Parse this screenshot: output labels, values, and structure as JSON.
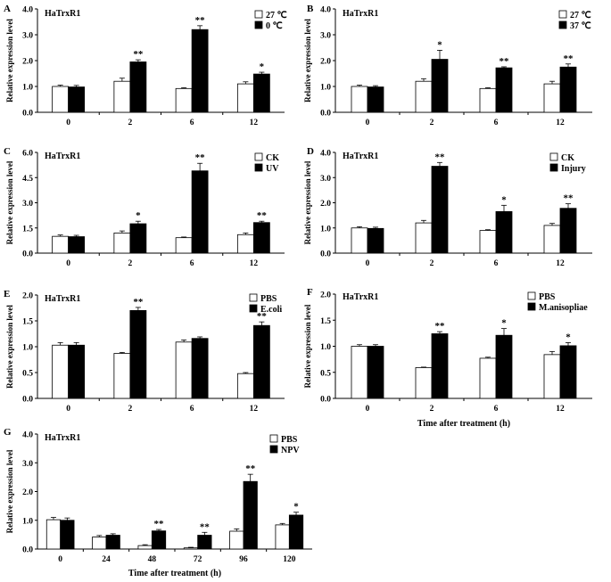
{
  "figure": {
    "colors": {
      "control": "#ffffff",
      "treatment": "#000000",
      "stroke": "#000000"
    }
  },
  "chart_data": [
    {
      "type": "bar",
      "panel": "A",
      "title": "HaTrxR1",
      "xlabel": "",
      "ylabel": "Relative expression level",
      "categories": [
        "0",
        "2",
        "6",
        "12"
      ],
      "ylim": [
        0,
        4.0
      ],
      "yticks": [
        "0.0",
        "1.0",
        "2.0",
        "3.0",
        "4.0"
      ],
      "legend_position": "top-right",
      "series": [
        {
          "name": "27 ℃",
          "values": [
            1.0,
            1.2,
            0.92,
            1.1
          ],
          "errors": [
            0.05,
            0.12,
            0.03,
            0.08
          ]
        },
        {
          "name": "0 ℃",
          "values": [
            0.98,
            1.95,
            3.2,
            1.48
          ],
          "errors": [
            0.06,
            0.08,
            0.15,
            0.07
          ]
        }
      ],
      "significance": [
        "",
        "**",
        "**",
        "*"
      ]
    },
    {
      "type": "bar",
      "panel": "B",
      "title": "HaTrxR1",
      "xlabel": "",
      "ylabel": "Relative expression level",
      "categories": [
        "0",
        "2",
        "6",
        "12"
      ],
      "ylim": [
        0,
        4.0
      ],
      "yticks": [
        "0.0",
        "1.0",
        "2.0",
        "3.0",
        "4.0"
      ],
      "legend_position": "top-right",
      "series": [
        {
          "name": "27 ℃",
          "values": [
            1.0,
            1.2,
            0.92,
            1.1
          ],
          "errors": [
            0.05,
            0.1,
            0.03,
            0.1
          ]
        },
        {
          "name": "37 ℃",
          "values": [
            0.98,
            2.05,
            1.72,
            1.75
          ],
          "errors": [
            0.05,
            0.35,
            0.04,
            0.12
          ]
        }
      ],
      "significance": [
        "",
        "*",
        "**",
        "**"
      ]
    },
    {
      "type": "bar",
      "panel": "C",
      "title": "HaTrxR1",
      "xlabel": "",
      "ylabel": "Relative expression level",
      "categories": [
        "0",
        "2",
        "6",
        "12"
      ],
      "ylim": [
        0,
        6.0
      ],
      "yticks": [
        "0.0",
        "1.5",
        "3.0",
        "4.5",
        "6.0"
      ],
      "legend_position": "top-right",
      "series": [
        {
          "name": "CK",
          "values": [
            1.0,
            1.2,
            0.92,
            1.1
          ],
          "errors": [
            0.08,
            0.12,
            0.04,
            0.1
          ]
        },
        {
          "name": "UV",
          "values": [
            0.98,
            1.75,
            4.9,
            1.82
          ],
          "errors": [
            0.08,
            0.15,
            0.45,
            0.08
          ]
        }
      ],
      "significance": [
        "",
        "*",
        "**",
        "**"
      ]
    },
    {
      "type": "bar",
      "panel": "D",
      "title": "HaTrxR1",
      "xlabel": "",
      "ylabel": "Relative expression level",
      "categories": [
        "0",
        "2",
        "6",
        "12"
      ],
      "ylim": [
        0,
        4.0
      ],
      "yticks": [
        "0.0",
        "1.0",
        "2.0",
        "3.0",
        "4.0"
      ],
      "legend_position": "top-right",
      "series": [
        {
          "name": "CK",
          "values": [
            1.0,
            1.2,
            0.9,
            1.1
          ],
          "errors": [
            0.05,
            0.1,
            0.03,
            0.08
          ]
        },
        {
          "name": "Injury",
          "values": [
            0.98,
            3.45,
            1.65,
            1.78
          ],
          "errors": [
            0.05,
            0.15,
            0.25,
            0.18
          ]
        }
      ],
      "significance": [
        "",
        "**",
        "*",
        "**"
      ]
    },
    {
      "type": "bar",
      "panel": "E",
      "title": "HaTrxR1",
      "xlabel": "",
      "ylabel": "Relative expression level",
      "categories": [
        "0",
        "2",
        "6",
        "12"
      ],
      "ylim": [
        0,
        2.0
      ],
      "yticks": [
        "0.0",
        "0.5",
        "1.0",
        "1.5",
        "2.0"
      ],
      "legend_position": "top-right",
      "series": [
        {
          "name": "PBS",
          "values": [
            1.03,
            0.87,
            1.09,
            0.48
          ],
          "errors": [
            0.05,
            0.02,
            0.04,
            0.02
          ]
        },
        {
          "name": "E.coli",
          "values": [
            1.03,
            1.7,
            1.16,
            1.41
          ],
          "errors": [
            0.05,
            0.06,
            0.03,
            0.07
          ]
        }
      ],
      "significance": [
        "",
        "**",
        "",
        "**"
      ]
    },
    {
      "type": "bar",
      "panel": "F",
      "title": "HaTrxR1",
      "xlabel": "Time after treatment (h)",
      "ylabel": "Relative expression level",
      "categories": [
        "0",
        "2",
        "6",
        "12"
      ],
      "ylim": [
        0,
        2.0
      ],
      "yticks": [
        "0.0",
        "0.5",
        "1.0",
        "1.5",
        "2.0"
      ],
      "legend_position": "top-right",
      "series": [
        {
          "name": "PBS",
          "values": [
            1.0,
            0.59,
            0.77,
            0.84
          ],
          "errors": [
            0.03,
            0.01,
            0.02,
            0.06
          ]
        },
        {
          "name": "M.anisopliae",
          "values": [
            1.0,
            1.24,
            1.21,
            1.01
          ],
          "errors": [
            0.03,
            0.04,
            0.13,
            0.06
          ]
        }
      ],
      "significance": [
        "",
        "**",
        "*",
        "*"
      ]
    },
    {
      "type": "bar",
      "panel": "G",
      "title": "HaTrxR1",
      "xlabel": "Time after treatment (h)",
      "ylabel": "Relative expression level",
      "categories": [
        "0",
        "24",
        "48",
        "72",
        "96",
        "120"
      ],
      "ylim": [
        0,
        4.0
      ],
      "yticks": [
        "0.0",
        "1.0",
        "2.0",
        "3.0",
        "4.0"
      ],
      "legend_position": "top-right",
      "series": [
        {
          "name": "PBS",
          "values": [
            1.02,
            0.42,
            0.12,
            0.04,
            0.62,
            0.84
          ],
          "errors": [
            0.08,
            0.05,
            0.03,
            0.02,
            0.08,
            0.05
          ]
        },
        {
          "name": "NPV",
          "values": [
            1.0,
            0.48,
            0.63,
            0.48,
            2.35,
            1.18
          ],
          "errors": [
            0.08,
            0.05,
            0.05,
            0.1,
            0.25,
            0.1
          ]
        }
      ],
      "significance": [
        "",
        "",
        "**",
        "**",
        "**",
        "*"
      ]
    }
  ]
}
